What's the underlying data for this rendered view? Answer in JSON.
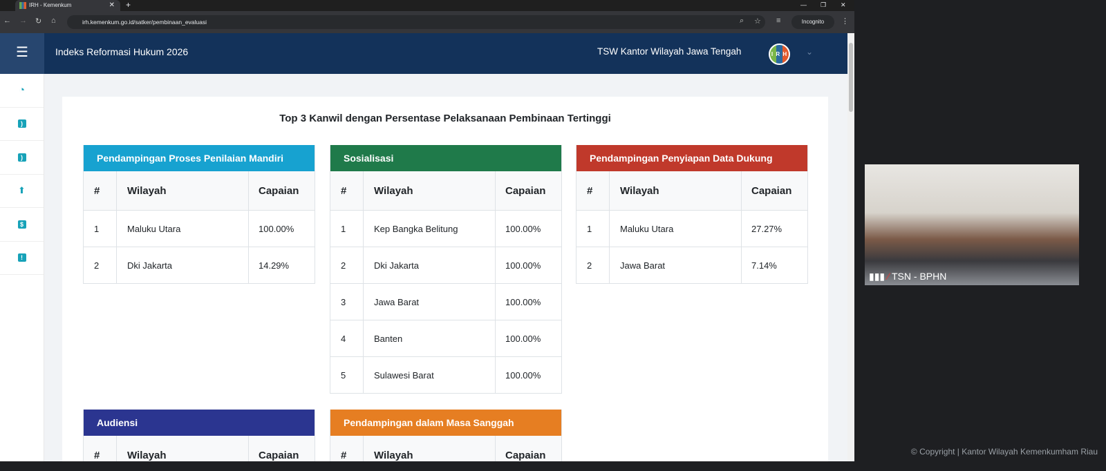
{
  "browser": {
    "tab_title": "IRH - Kemenkum",
    "url": "irh.kemenkum.go.id/satker/pembinaan_evaluasi",
    "incognito": "Incognito"
  },
  "header": {
    "title": "Indeks Reformasi Hukum 2026",
    "user": "TSW Kantor Wilayah Jawa Tengah",
    "logo_text": "IRH"
  },
  "sidebar": {
    "icons": [
      "dashboard-icon",
      "rss-icon",
      "rss-icon",
      "upload-icon",
      "file-icon",
      "alert-icon"
    ]
  },
  "main": {
    "title": "Top 3 Kanwil dengan Persentase Pelaksanaan Pembinaan Tertinggi",
    "columns": [
      "#",
      "Wilayah",
      "Capaian"
    ],
    "tables": [
      {
        "title": "Pendampingan Proses Penilaian Mandiri",
        "color": "#17a2d0",
        "rows": [
          [
            "1",
            "Maluku Utara",
            "100.00%"
          ],
          [
            "2",
            "Dki Jakarta",
            "14.29%"
          ]
        ]
      },
      {
        "title": "Sosialisasi",
        "color": "#1f7a4a",
        "rows": [
          [
            "1",
            "Kep Bangka Belitung",
            "100.00%"
          ],
          [
            "2",
            "Dki Jakarta",
            "100.00%"
          ],
          [
            "3",
            "Jawa Barat",
            "100.00%"
          ],
          [
            "4",
            "Banten",
            "100.00%"
          ],
          [
            "5",
            "Sulawesi Barat",
            "100.00%"
          ]
        ]
      },
      {
        "title": "Pendampingan Penyiapan Data Dukung",
        "color": "#c0392b",
        "rows": [
          [
            "1",
            "Maluku Utara",
            "27.27%"
          ],
          [
            "2",
            "Jawa Barat",
            "7.14%"
          ]
        ]
      },
      {
        "title": "Audiensi",
        "color": "#2b3590",
        "rows": []
      },
      {
        "title": "Pendampingan dalam Masa Sanggah",
        "color": "#e67e22",
        "rows": []
      }
    ]
  },
  "video": {
    "participant": "TSN - BPHN"
  },
  "footer": "© Copyright | Kantor Wilayah Kemenkumham Riau"
}
